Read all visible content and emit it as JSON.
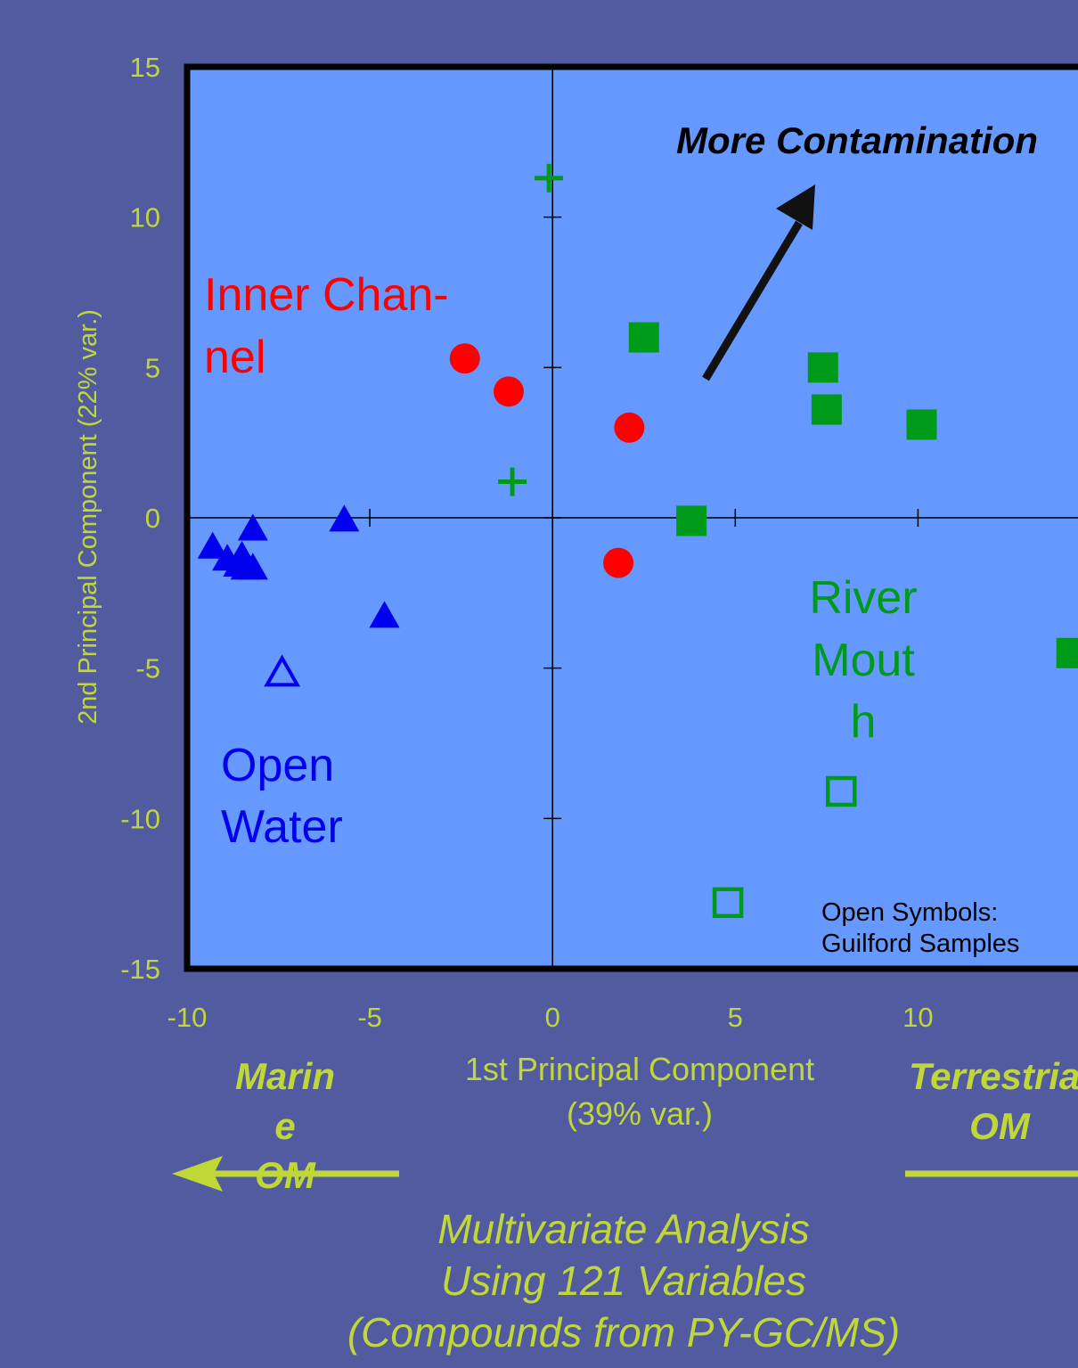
{
  "chart_data": {
    "type": "scatter",
    "xlabel": [
      "1st Principal Component",
      "(39% var.)"
    ],
    "ylabel": "2nd Principal Component (22% var.)",
    "xlim": [
      -10,
      14.5
    ],
    "ylim": [
      -15,
      15
    ],
    "xticks": [
      -10,
      -5,
      0,
      5,
      10
    ],
    "yticks": [
      15,
      10,
      5,
      0,
      -5,
      -10,
      -15
    ],
    "grid": false,
    "series": [
      {
        "name": "Inner Channel",
        "marker": "circle-filled",
        "color": "#ff0000",
        "points": [
          {
            "x": -2.4,
            "y": 5.3
          },
          {
            "x": -1.2,
            "y": 4.2
          },
          {
            "x": 2.1,
            "y": 3.0
          },
          {
            "x": 1.8,
            "y": -1.5
          }
        ]
      },
      {
        "name": "Open Water",
        "marker": "triangle-filled",
        "color": "#0000ee",
        "points": [
          {
            "x": -9.3,
            "y": -1.0
          },
          {
            "x": -8.9,
            "y": -1.4
          },
          {
            "x": -8.6,
            "y": -1.6
          },
          {
            "x": -8.4,
            "y": -1.7
          },
          {
            "x": -8.2,
            "y": -1.7
          },
          {
            "x": -8.5,
            "y": -1.3
          },
          {
            "x": -8.2,
            "y": -0.4
          },
          {
            "x": -5.7,
            "y": -0.1
          },
          {
            "x": -4.6,
            "y": -3.3
          }
        ]
      },
      {
        "name": "Open Water (Guilford)",
        "marker": "triangle-open",
        "color": "#0000ee",
        "points": [
          {
            "x": -7.4,
            "y": -5.2
          }
        ]
      },
      {
        "name": "River Mouth",
        "marker": "square-filled",
        "color": "#009a1a",
        "points": [
          {
            "x": 2.5,
            "y": 6.0
          },
          {
            "x": 7.4,
            "y": 5.0
          },
          {
            "x": 7.5,
            "y": 3.6
          },
          {
            "x": 10.1,
            "y": 3.1
          },
          {
            "x": 3.8,
            "y": -0.1
          },
          {
            "x": 14.2,
            "y": -4.5
          }
        ]
      },
      {
        "name": "River Mouth (Guilford)",
        "marker": "square-open",
        "color": "#009a1a",
        "points": [
          {
            "x": 7.9,
            "y": -9.1
          },
          {
            "x": 4.8,
            "y": -12.8
          }
        ]
      },
      {
        "name": "Plus",
        "marker": "plus",
        "color": "#009a1a",
        "points": [
          {
            "x": -0.1,
            "y": 11.3
          },
          {
            "x": -1.1,
            "y": 1.2
          }
        ]
      }
    ],
    "annotations": {
      "more_contamination": "More Contamination",
      "inner_channel": [
        "Inner Chan-",
        "nel"
      ],
      "open_water": [
        "Open",
        "Water"
      ],
      "river_mouth": [
        "River",
        "Mout",
        "h"
      ],
      "open_symbols": [
        "Open Symbols:",
        "Guilford Samples"
      ],
      "marine_om": [
        "Marin",
        "e",
        "OM"
      ],
      "terrestrial_om": [
        "Terrestrial",
        "OM"
      ]
    },
    "caption": [
      "Multivariate Analysis",
      "Using 121 Variables",
      "(Compounds from PY-GC/MS)"
    ]
  },
  "colors": {
    "background": "#525ba0",
    "plot_area": "#6699ff",
    "axis_text": "#bfd838",
    "inner_channel": "#ff0000",
    "open_water": "#0000ee",
    "river_mouth": "#009a1a"
  }
}
